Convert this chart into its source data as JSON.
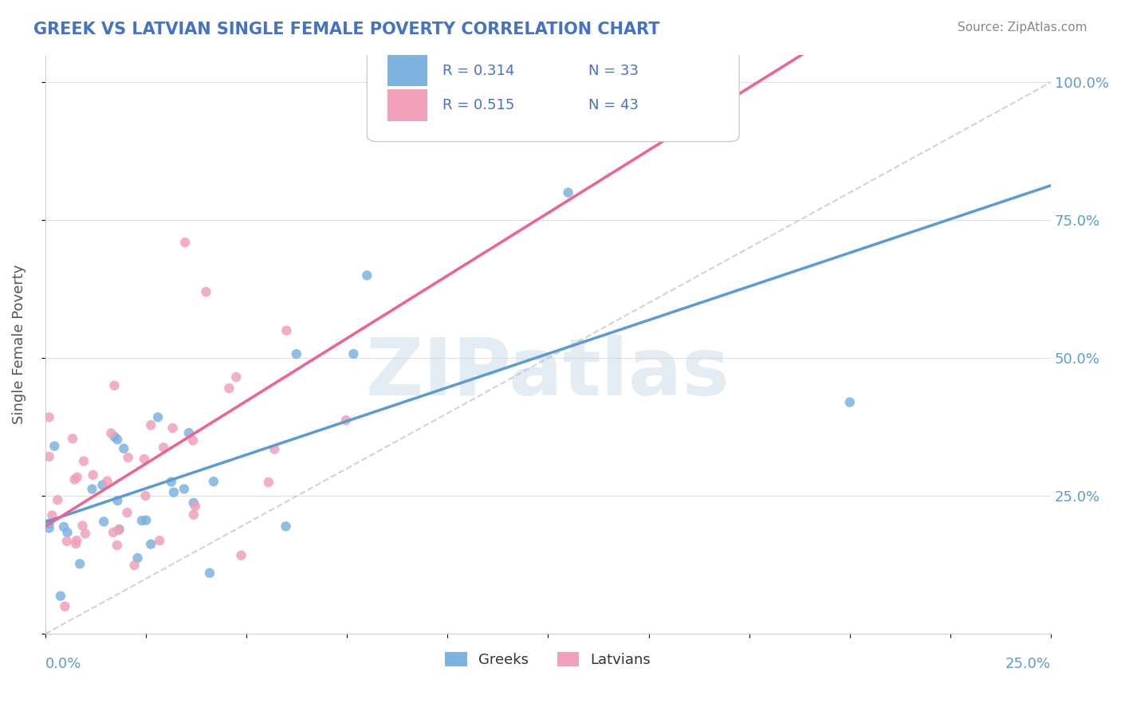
{
  "title": "GREEK VS LATVIAN SINGLE FEMALE POVERTY CORRELATION CHART",
  "source_text": "Source: ZipAtlas.com",
  "ylabel": "Single Female Poverty",
  "watermark": "ZIPatlas",
  "xlim": [
    0.0,
    0.25
  ],
  "ylim": [
    0.0,
    1.05
  ],
  "greek_color": "#7eb3e0",
  "latvian_color": "#f0a0b8",
  "greek_line_color": "#5b9bd5",
  "latvian_line_color": "#f06090",
  "title_color": "#4472c4",
  "legend_text_color": "#4472c4",
  "greek_R": 0.314,
  "greek_N": 33,
  "latvian_R": 0.515,
  "latvian_N": 43,
  "background_color": "#ffffff",
  "grid_color": "#e0e0e0",
  "axis_label_color": "#5b9bd5"
}
